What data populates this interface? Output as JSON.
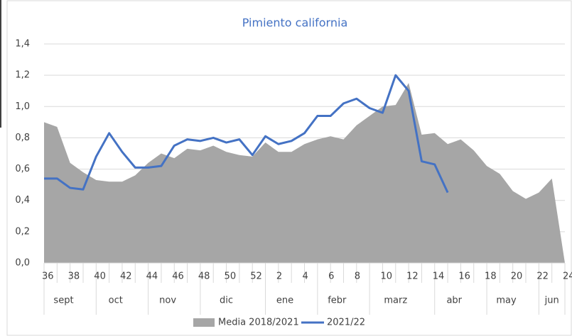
{
  "chart_data": {
    "type": "area-line",
    "title": "Pimiento california",
    "categories": [
      "36",
      null,
      "38",
      null,
      "40",
      null,
      "42",
      null,
      "44",
      null,
      "46",
      null,
      "48",
      null,
      "50",
      null,
      "52",
      null,
      "2",
      null,
      "4",
      null,
      "6",
      null,
      "8",
      null,
      "10",
      null,
      "12",
      null,
      "14",
      null,
      "16",
      null,
      "18",
      null,
      "20",
      null,
      "22",
      null,
      "24"
    ],
    "groups": [
      {
        "name": "sept",
        "span": 4
      },
      {
        "name": "oct",
        "span": 4
      },
      {
        "name": "nov",
        "span": 4
      },
      {
        "name": "dic",
        "span": 5
      },
      {
        "name": "ene",
        "span": 4
      },
      {
        "name": "febr",
        "span": 4
      },
      {
        "name": "marz",
        "span": 5
      },
      {
        "name": "abr",
        "span": 4
      },
      {
        "name": "may",
        "span": 4
      },
      {
        "name": "jun",
        "span": 3
      }
    ],
    "series": [
      {
        "name": "Media 2018/2021",
        "kind": "area",
        "color": "#a6a6a6",
        "values": [
          0.9,
          0.87,
          0.64,
          0.58,
          0.53,
          0.52,
          0.52,
          0.56,
          0.64,
          0.7,
          0.67,
          0.73,
          0.72,
          0.75,
          0.71,
          0.69,
          0.68,
          0.77,
          0.71,
          0.71,
          0.76,
          0.79,
          0.81,
          0.79,
          0.88,
          0.94,
          1.0,
          1.01,
          1.15,
          0.82,
          0.83,
          0.76,
          0.79,
          0.72,
          0.62,
          0.57,
          0.46,
          0.41,
          0.45,
          0.54,
          0.0
        ]
      },
      {
        "name": "2021/22",
        "kind": "line",
        "color": "#4472c4",
        "values": [
          0.54,
          0.54,
          0.48,
          0.47,
          0.68,
          0.83,
          0.71,
          0.61,
          0.61,
          0.62,
          0.75,
          0.79,
          0.78,
          0.8,
          0.77,
          0.79,
          0.69,
          0.81,
          0.76,
          0.78,
          0.83,
          0.94,
          0.94,
          1.02,
          1.05,
          0.99,
          0.96,
          1.2,
          1.1,
          0.65,
          0.63,
          0.45,
          null,
          null,
          null,
          null,
          null,
          null,
          null,
          null,
          null
        ]
      }
    ],
    "ylim": [
      0,
      1.4
    ],
    "yticks": [
      {
        "value": 0,
        "label": "0,0"
      },
      {
        "value": 0.2,
        "label": "0,2"
      },
      {
        "value": 0.4,
        "label": "0,4"
      },
      {
        "value": 0.6,
        "label": "0,6"
      },
      {
        "value": 0.8,
        "label": "0,8"
      },
      {
        "value": 1.0,
        "label": "1,0"
      },
      {
        "value": 1.2,
        "label": "1,2"
      },
      {
        "value": 1.4,
        "label": "1,4"
      }
    ],
    "grid": true,
    "legend": "bottom"
  }
}
